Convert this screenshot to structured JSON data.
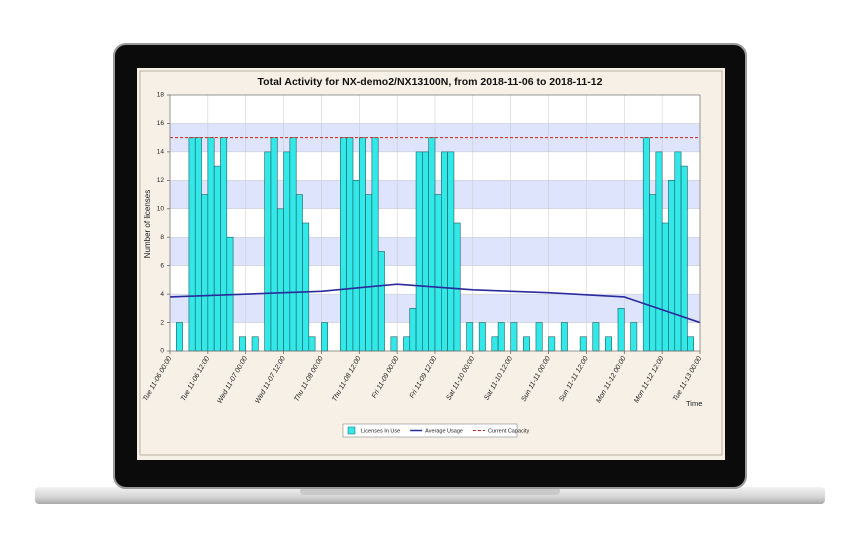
{
  "chart_data": {
    "type": "bar",
    "title": "Total Activity for NX-demo2/NX13100N, from 2018-11-06 to 2018-11-12",
    "x_label": "Time",
    "y_label": "Number of licenses",
    "xlim": [
      "11-06 00:00",
      "11-13 00:00"
    ],
    "xticks": [
      {
        "value": "11-06 00:00",
        "label": "Tue 11-06 00:00"
      },
      {
        "value": "11-06 12:00",
        "label": "Tue 11-06 12:00"
      },
      {
        "value": "11-07 00:00",
        "label": "Wed 11-07 00:00"
      },
      {
        "value": "11-07 12:00",
        "label": "Wed 11-07 12:00"
      },
      {
        "value": "11-08 00:00",
        "label": "Thu 11-08 00:00"
      },
      {
        "value": "11-08 12:00",
        "label": "Thu 11-08 12:00"
      },
      {
        "value": "11-09 00:00",
        "label": "Fri 11-09 00:00"
      },
      {
        "value": "11-09 12:00",
        "label": "Fri 11-09 12:00"
      },
      {
        "value": "11-10 00:00",
        "label": "Sat 11-10 00:00"
      },
      {
        "value": "11-10 12:00",
        "label": "Sat 11-10 12:00"
      },
      {
        "value": "11-11 00:00",
        "label": "Sun 11-11 00:00"
      },
      {
        "value": "11-11 12:00",
        "label": "Sun 11-11 12:00"
      },
      {
        "value": "11-12 00:00",
        "label": "Mon 11-12 00:00"
      },
      {
        "value": "11-12 12:00",
        "label": "Mon 11-12 12:00"
      },
      {
        "value": "11-13 00:00",
        "label": "Tue 11-13 00:00"
      }
    ],
    "ylim": [
      0,
      18
    ],
    "yticks": [
      0,
      2,
      4,
      6,
      8,
      10,
      12,
      14,
      16,
      18
    ],
    "grid": true,
    "legend": "bottom",
    "series": [
      {
        "name": "Licenses In Use",
        "type": "bar",
        "color": "#33e8e8",
        "x": [
          "11-06 00:00",
          "11-06 02:00",
          "11-06 04:00",
          "11-06 06:00",
          "11-06 08:00",
          "11-06 10:00",
          "11-06 12:00",
          "11-06 14:00",
          "11-06 16:00",
          "11-06 18:00",
          "11-06 20:00",
          "11-06 22:00",
          "11-07 00:00",
          "11-07 02:00",
          "11-07 04:00",
          "11-07 06:00",
          "11-07 08:00",
          "11-07 10:00",
          "11-07 12:00",
          "11-07 14:00",
          "11-07 16:00",
          "11-07 18:00",
          "11-07 20:00",
          "11-07 22:00",
          "11-08 00:00",
          "11-08 02:00",
          "11-08 04:00",
          "11-08 06:00",
          "11-08 08:00",
          "11-08 10:00",
          "11-08 12:00",
          "11-08 14:00",
          "11-08 16:00",
          "11-08 18:00",
          "11-08 20:00",
          "11-08 22:00",
          "11-09 00:00",
          "11-09 02:00",
          "11-09 04:00",
          "11-09 06:00",
          "11-09 08:00",
          "11-09 10:00",
          "11-09 12:00",
          "11-09 14:00",
          "11-09 16:00",
          "11-09 18:00",
          "11-09 20:00",
          "11-09 22:00",
          "11-10 00:00",
          "11-10 02:00",
          "11-10 04:00",
          "11-10 06:00",
          "11-10 08:00",
          "11-10 10:00",
          "11-10 12:00",
          "11-10 14:00",
          "11-10 16:00",
          "11-10 18:00",
          "11-10 20:00",
          "11-10 22:00",
          "11-11 00:00",
          "11-11 02:00",
          "11-11 04:00",
          "11-11 06:00",
          "11-11 08:00",
          "11-11 10:00",
          "11-11 12:00",
          "11-11 14:00",
          "11-11 16:00",
          "11-11 18:00",
          "11-11 20:00",
          "11-11 22:00",
          "11-12 00:00",
          "11-12 02:00",
          "11-12 04:00",
          "11-12 06:00",
          "11-12 08:00",
          "11-12 10:00",
          "11-12 12:00",
          "11-12 14:00",
          "11-12 16:00",
          "11-12 18:00",
          "11-12 20:00",
          "11-12 22:00"
        ],
        "values": [
          0,
          2,
          0,
          15,
          15,
          11,
          15,
          13,
          15,
          8,
          0,
          1,
          0,
          1,
          0,
          14,
          15,
          10,
          14,
          15,
          11,
          9,
          1,
          0,
          2,
          0,
          0,
          15,
          15,
          12,
          15,
          11,
          15,
          7,
          0,
          1,
          0,
          1,
          3,
          14,
          14,
          15,
          11,
          14,
          14,
          9,
          0,
          2,
          0,
          2,
          0,
          1,
          2,
          0,
          2,
          0,
          1,
          0,
          2,
          0,
          1,
          0,
          2,
          0,
          0,
          1,
          0,
          2,
          0,
          1,
          0,
          3,
          0,
          2,
          0,
          15,
          11,
          14,
          9,
          12,
          14,
          13,
          1,
          0
        ]
      },
      {
        "name": "Average Usage",
        "type": "line",
        "color": "#2b2b9e",
        "x": [
          "11-06 00:00",
          "11-07 12:00",
          "11-08 00:00",
          "11-09 00:00",
          "11-10 00:00",
          "11-11 00:00",
          "11-12 00:00",
          "11-13 00:00"
        ],
        "values": [
          3.8,
          4.1,
          4.2,
          4.7,
          4.3,
          4.1,
          3.8,
          2.0
        ]
      },
      {
        "name": "Current Capacity",
        "type": "hline",
        "color": "#cc2222",
        "value": 15
      }
    ]
  }
}
